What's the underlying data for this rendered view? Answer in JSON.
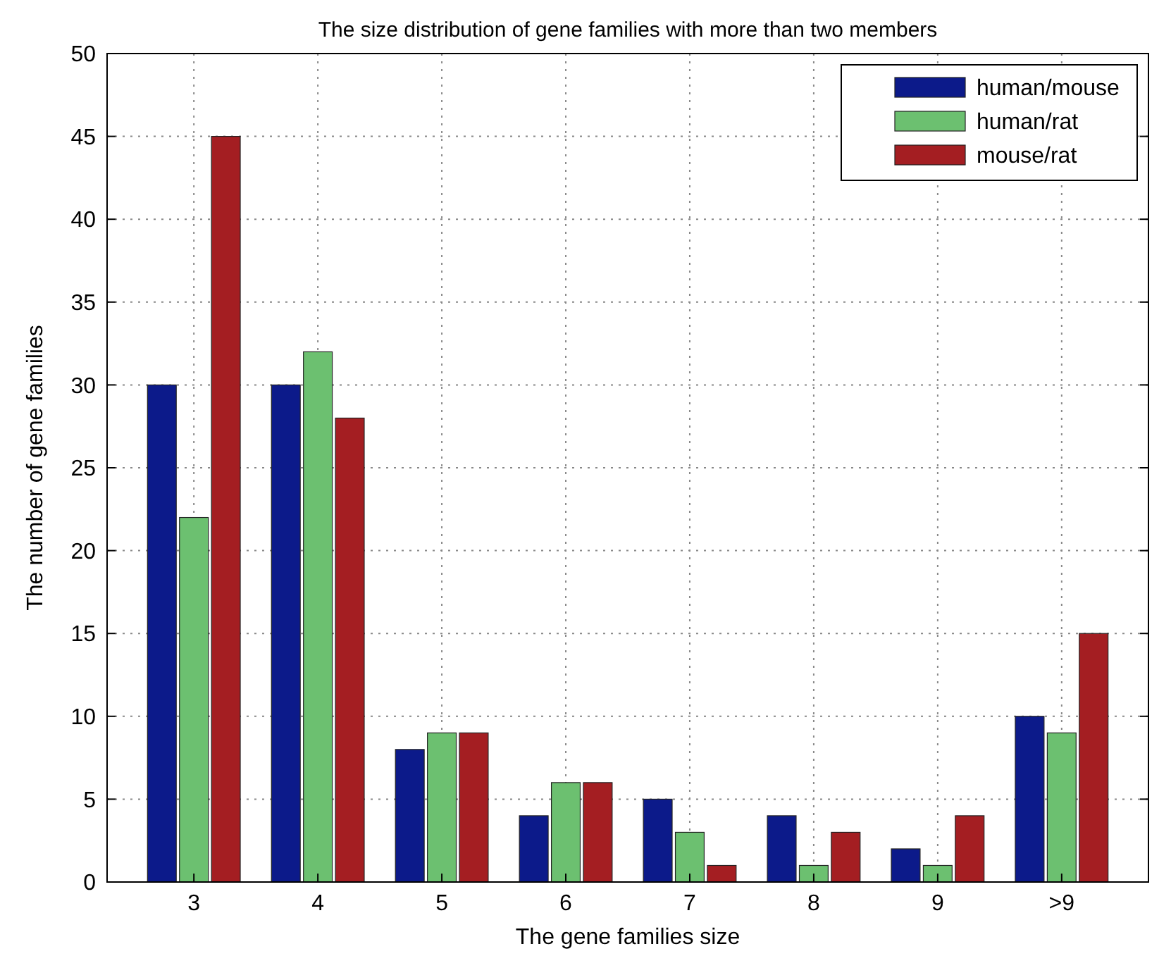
{
  "chart_data": {
    "type": "bar",
    "title": "The size distribution of gene families with more than two members",
    "xlabel": "The gene families size",
    "ylabel": "The number of gene families",
    "categories": [
      "3",
      "4",
      "5",
      "6",
      "7",
      "8",
      "9",
      ">9"
    ],
    "series": [
      {
        "name": "human/mouse",
        "color": "#0c1a8a",
        "values": [
          30,
          30,
          8,
          4,
          5,
          4,
          2,
          10
        ]
      },
      {
        "name": "human/rat",
        "color": "#6cc070",
        "values": [
          22,
          32,
          9,
          6,
          3,
          1,
          1,
          9
        ]
      },
      {
        "name": "mouse/rat",
        "color": "#a41e22",
        "values": [
          45,
          28,
          9,
          6,
          1,
          3,
          4,
          15
        ]
      }
    ],
    "ylim": [
      0,
      50
    ],
    "yticks": [
      0,
      5,
      10,
      15,
      20,
      25,
      30,
      35,
      40,
      45,
      50
    ],
    "grid": true,
    "legend": "top right"
  }
}
